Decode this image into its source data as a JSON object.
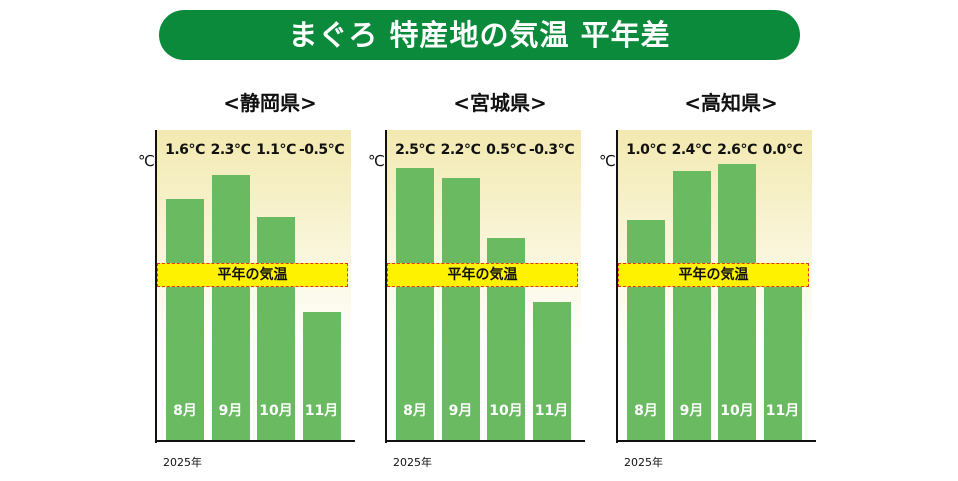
{
  "title": "まぐろ 特産地の気温 平年差",
  "chart_data": [
    {
      "type": "bar",
      "title": "<静岡県>",
      "ylabel": "℃",
      "xlabel": "2025年",
      "categories": [
        "8月",
        "9月",
        "10月",
        "11月"
      ],
      "values": [
        1.6,
        2.3,
        1.1,
        -0.5
      ],
      "value_labels": [
        "1.6℃",
        "2.3℃",
        "1.1℃",
        "-0.5℃"
      ],
      "reference_label": "平年の気温",
      "reference_value": 0
    },
    {
      "type": "bar",
      "title": "<宮城県>",
      "ylabel": "℃",
      "xlabel": "2025年",
      "categories": [
        "8月",
        "9月",
        "10月",
        "11月"
      ],
      "values": [
        2.5,
        2.2,
        0.5,
        -0.3
      ],
      "value_labels": [
        "2.5℃",
        "2.2℃",
        "0.5℃",
        "-0.3℃"
      ],
      "reference_label": "平年の気温",
      "reference_value": 0
    },
    {
      "type": "bar",
      "title": "<高知県>",
      "ylabel": "℃",
      "xlabel": "2025年",
      "categories": [
        "8月",
        "9月",
        "10月",
        "11月"
      ],
      "values": [
        1.0,
        2.4,
        2.6,
        0.0
      ],
      "value_labels": [
        "1.0℃",
        "2.4℃",
        "2.6℃",
        "0.0℃"
      ],
      "reference_label": "平年の気温",
      "reference_value": 0
    }
  ],
  "colors": {
    "title_bg": "#0a8a3a",
    "bar": "#6aba62",
    "reference_band": "#fff200",
    "reference_border": "#e5332a"
  }
}
